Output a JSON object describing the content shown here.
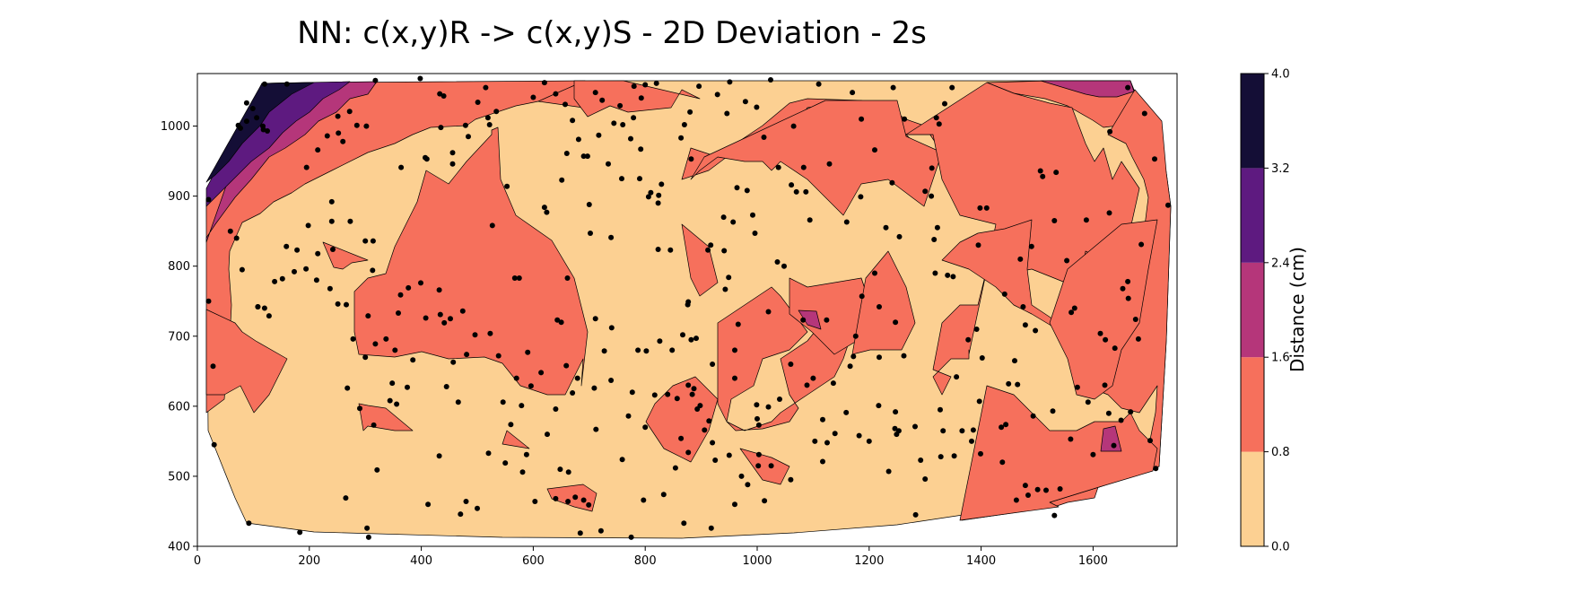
{
  "chart_data": {
    "type": "contour",
    "title": "NN: c(x,y)R -> c(x,y)S - 2D Deviation - 2s",
    "xlim": [
      0,
      1750
    ],
    "ylim": [
      400,
      1075
    ],
    "x_ticks": [
      0,
      200,
      400,
      600,
      800,
      1000,
      1200,
      1400,
      1600
    ],
    "y_ticks": [
      400,
      500,
      600,
      700,
      800,
      900,
      1000
    ],
    "colorbar": {
      "label": "Distance (cm)",
      "levels": [
        0.0,
        0.8,
        1.6,
        2.4,
        3.2,
        4.0
      ],
      "colors": [
        "#fcd092",
        "#f6705c",
        "#b5367a",
        "#5e1a80",
        "#140e36"
      ]
    },
    "sample_points": [
      [
        20,
        895
      ],
      [
        120,
        1060
      ],
      [
        160,
        1060
      ],
      [
        318,
        1065
      ],
      [
        398,
        1068
      ],
      [
        433,
        1046
      ],
      [
        440,
        1043
      ],
      [
        534,
        1021
      ],
      [
        519,
        1012
      ],
      [
        522,
        1002
      ],
      [
        620,
        1062
      ],
      [
        711,
        1048
      ],
      [
        723,
        1037
      ],
      [
        755,
        1029
      ],
      [
        760,
        1002
      ],
      [
        820,
        1061
      ],
      [
        864,
        983
      ],
      [
        882,
        953
      ],
      [
        999,
        1027
      ],
      [
        1024,
        1066
      ],
      [
        1012,
        984
      ],
      [
        1065,
        1000
      ],
      [
        1110,
        1060
      ],
      [
        1170,
        1048
      ],
      [
        1186,
        1010
      ],
      [
        1243,
        1055
      ],
      [
        1263,
        1010
      ],
      [
        1320,
        1012
      ],
      [
        1325,
        1003
      ],
      [
        1335,
        1032
      ],
      [
        1348,
        1055
      ],
      [
        1662,
        1055
      ],
      [
        1692,
        1018
      ],
      [
        1710,
        953
      ],
      [
        1630,
        992
      ],
      [
        1734,
        887
      ],
      [
        1629,
        876
      ],
      [
        1588,
        866
      ],
      [
        1506,
        936
      ],
      [
        1510,
        928
      ],
      [
        1534,
        934
      ],
      [
        1398,
        883
      ],
      [
        1410,
        883
      ],
      [
        1312,
        940
      ],
      [
        1300,
        907
      ],
      [
        1311,
        900
      ],
      [
        1322,
        855
      ],
      [
        1316,
        838
      ],
      [
        1340,
        787
      ],
      [
        1254,
        842
      ],
      [
        1230,
        855
      ],
      [
        1241,
        919
      ],
      [
        1210,
        966
      ],
      [
        1185,
        899
      ],
      [
        1160,
        863
      ],
      [
        1129,
        946
      ],
      [
        1083,
        941
      ],
      [
        1094,
        866
      ],
      [
        1070,
        906
      ],
      [
        1061,
        916
      ],
      [
        1087,
        906
      ],
      [
        1038,
        941
      ],
      [
        982,
        908
      ],
      [
        964,
        912
      ],
      [
        992,
        873
      ],
      [
        940,
        870
      ],
      [
        957,
        863
      ],
      [
        912,
        823
      ],
      [
        882,
        695
      ],
      [
        887,
        625
      ],
      [
        864,
        554
      ],
      [
        893,
        596
      ],
      [
        906,
        566
      ],
      [
        920,
        548
      ],
      [
        925,
        523
      ],
      [
        960,
        460
      ],
      [
        983,
        488
      ],
      [
        1013,
        465
      ],
      [
        1003,
        531
      ],
      [
        1003,
        573
      ],
      [
        999,
        602
      ],
      [
        1025,
        515
      ],
      [
        1060,
        495
      ],
      [
        1117,
        521
      ],
      [
        1125,
        548
      ],
      [
        1082,
        723
      ],
      [
        1172,
        671
      ],
      [
        1187,
        757
      ],
      [
        1218,
        742
      ],
      [
        1246,
        568
      ],
      [
        1253,
        565
      ],
      [
        1249,
        560
      ],
      [
        1283,
        445
      ],
      [
        1292,
        523
      ],
      [
        1328,
        528
      ],
      [
        1356,
        642
      ],
      [
        1366,
        565
      ],
      [
        1383,
        550
      ],
      [
        1399,
        532
      ],
      [
        1392,
        710
      ],
      [
        1460,
        665
      ],
      [
        1475,
        742
      ],
      [
        1479,
        716
      ],
      [
        1479,
        487
      ],
      [
        1484,
        473
      ],
      [
        1501,
        481
      ],
      [
        1493,
        586
      ],
      [
        1531,
        444
      ],
      [
        1553,
        808
      ],
      [
        1567,
        740
      ],
      [
        1572,
        627
      ],
      [
        1613,
        704
      ],
      [
        1622,
        695
      ],
      [
        1621,
        630
      ],
      [
        1628,
        590
      ],
      [
        1650,
        580
      ],
      [
        1637,
        544
      ],
      [
        1639,
        683
      ],
      [
        1653,
        768
      ],
      [
        1662,
        778
      ],
      [
        1663,
        754
      ],
      [
        1676,
        724
      ],
      [
        1681,
        696
      ],
      [
        1686,
        831
      ],
      [
        1712,
        511
      ],
      [
        1600,
        531
      ],
      [
        1463,
        466
      ],
      [
        1438,
        520
      ],
      [
        1516,
        480
      ],
      [
        1561,
        734
      ],
      [
        1497,
        708
      ],
      [
        1531,
        865
      ],
      [
        1490,
        828
      ],
      [
        1470,
        810
      ],
      [
        1395,
        830
      ],
      [
        1442,
        760
      ],
      [
        1350,
        785
      ],
      [
        1318,
        790
      ],
      [
        1210,
        790
      ],
      [
        1247,
        720
      ],
      [
        1176,
        700
      ],
      [
        1124,
        723
      ],
      [
        1100,
        640
      ],
      [
        1060,
        660
      ],
      [
        1040,
        610
      ],
      [
        1020,
        599
      ],
      [
        1000,
        582
      ],
      [
        1020,
        735
      ],
      [
        1048,
        800
      ],
      [
        1036,
        806
      ],
      [
        996,
        847
      ],
      [
        941,
        822
      ],
      [
        949,
        784
      ],
      [
        943,
        767
      ],
      [
        966,
        717
      ],
      [
        960,
        680
      ],
      [
        960,
        640
      ],
      [
        920,
        660
      ],
      [
        898,
        601
      ],
      [
        884,
        617
      ],
      [
        877,
        630
      ],
      [
        891,
        697
      ],
      [
        867,
        702
      ],
      [
        848,
        680
      ],
      [
        857,
        611
      ],
      [
        840,
        617
      ],
      [
        817,
        616
      ],
      [
        826,
        693
      ],
      [
        845,
        823
      ],
      [
        823,
        824
      ],
      [
        797,
        466
      ],
      [
        775,
        413
      ],
      [
        759,
        524
      ],
      [
        721,
        422
      ],
      [
        712,
        567
      ],
      [
        699,
        459
      ],
      [
        690,
        466
      ],
      [
        684,
        419
      ],
      [
        662,
        464
      ],
      [
        675,
        470
      ],
      [
        663,
        506
      ],
      [
        648,
        510
      ],
      [
        640,
        468
      ],
      [
        603,
        464
      ],
      [
        581,
        506
      ],
      [
        588,
        531
      ],
      [
        550,
        519
      ],
      [
        520,
        533
      ],
      [
        500,
        454
      ],
      [
        480,
        464
      ],
      [
        470,
        446
      ],
      [
        412,
        460
      ],
      [
        432,
        529
      ],
      [
        303,
        426
      ],
      [
        306,
        413
      ],
      [
        315,
        573
      ],
      [
        321,
        509
      ],
      [
        344,
        608
      ],
      [
        356,
        603
      ],
      [
        348,
        633
      ],
      [
        385,
        666
      ],
      [
        408,
        726
      ],
      [
        441,
        719
      ],
      [
        434,
        731
      ],
      [
        452,
        725
      ],
      [
        457,
        663
      ],
      [
        481,
        674
      ],
      [
        466,
        606
      ],
      [
        445,
        628
      ],
      [
        375,
        627
      ],
      [
        353,
        680
      ],
      [
        300,
        670
      ],
      [
        313,
        794
      ],
      [
        314,
        836
      ],
      [
        300,
        836
      ],
      [
        273,
        864
      ],
      [
        242,
        824
      ],
      [
        215,
        818
      ],
      [
        178,
        823
      ],
      [
        128,
        729
      ],
      [
        120,
        740
      ],
      [
        108,
        742
      ],
      [
        108,
        742
      ],
      [
        80,
        795
      ],
      [
        70,
        840
      ],
      [
        59,
        850
      ],
      [
        20,
        750
      ],
      [
        28,
        657
      ],
      [
        30,
        545
      ],
      [
        92,
        433
      ],
      [
        183,
        420
      ],
      [
        265,
        469
      ],
      [
        290,
        597
      ],
      [
        268,
        626
      ],
      [
        410,
        953
      ],
      [
        456,
        962
      ],
      [
        553,
        914
      ],
      [
        624,
        877
      ],
      [
        620,
        884
      ],
      [
        697,
        957
      ],
      [
        734,
        946
      ],
      [
        758,
        925
      ],
      [
        790,
        925
      ],
      [
        810,
        905
      ],
      [
        806,
        899
      ],
      [
        739,
        841
      ],
      [
        702,
        847
      ],
      [
        700,
        888
      ],
      [
        690,
        957
      ],
      [
        651,
        923
      ],
      [
        567,
        783
      ],
      [
        527,
        858
      ],
      [
        575,
        783
      ],
      [
        661,
        783
      ],
      [
        650,
        720
      ],
      [
        643,
        723
      ],
      [
        640,
        596
      ],
      [
        625,
        560
      ],
      [
        711,
        725
      ],
      [
        727,
        679
      ],
      [
        740,
        712
      ],
      [
        787,
        680
      ],
      [
        802,
        679
      ],
      [
        823,
        890
      ],
      [
        876,
        745
      ],
      [
        877,
        749
      ],
      [
        829,
        917
      ],
      [
        824,
        901
      ],
      [
        917,
        830
      ],
      [
        869,
        433
      ],
      [
        918,
        426
      ],
      [
        1139,
        561
      ],
      [
        1182,
        558
      ],
      [
        1247,
        592
      ],
      [
        1217,
        601
      ],
      [
        1327,
        595
      ],
      [
        1282,
        571
      ],
      [
        1332,
        565
      ],
      [
        1436,
        570
      ],
      [
        1444,
        574
      ],
      [
        1528,
        593
      ],
      [
        1591,
        606
      ],
      [
        1667,
        592
      ],
      [
        1702,
        551
      ],
      [
        1541,
        482
      ],
      [
        1560,
        553
      ],
      [
        1465,
        631
      ],
      [
        1397,
        607
      ],
      [
        1402,
        669
      ],
      [
        1449,
        632
      ],
      [
        1377,
        695
      ],
      [
        1262,
        672
      ],
      [
        1218,
        670
      ],
      [
        1166,
        657
      ],
      [
        1136,
        633
      ],
      [
        1089,
        630
      ],
      [
        1159,
        591
      ],
      [
        1200,
        550
      ],
      [
        1300,
        496
      ],
      [
        1352,
        529
      ],
      [
        1386,
        566
      ],
      [
        1235,
        507
      ],
      [
        1117,
        581
      ],
      [
        1103,
        550
      ],
      [
        1002,
        515
      ],
      [
        972,
        500
      ],
      [
        950,
        530
      ],
      [
        914,
        579
      ],
      [
        877,
        534
      ],
      [
        833,
        474
      ],
      [
        854,
        512
      ],
      [
        800,
        570
      ],
      [
        770,
        586
      ],
      [
        777,
        620
      ],
      [
        739,
        637
      ],
      [
        709,
        626
      ],
      [
        679,
        640
      ],
      [
        670,
        619
      ],
      [
        659,
        658
      ],
      [
        614,
        648
      ],
      [
        596,
        629
      ],
      [
        579,
        601
      ],
      [
        560,
        574
      ],
      [
        546,
        606
      ],
      [
        570,
        640
      ],
      [
        590,
        677
      ],
      [
        538,
        672
      ],
      [
        523,
        704
      ],
      [
        496,
        702
      ],
      [
        474,
        736
      ],
      [
        432,
        766
      ],
      [
        399,
        776
      ],
      [
        377,
        769
      ],
      [
        363,
        759
      ],
      [
        359,
        733
      ],
      [
        337,
        696
      ],
      [
        318,
        689
      ],
      [
        305,
        729
      ],
      [
        278,
        696
      ],
      [
        266,
        745
      ],
      [
        251,
        746
      ],
      [
        237,
        768
      ],
      [
        213,
        780
      ],
      [
        194,
        796
      ],
      [
        173,
        792
      ],
      [
        152,
        782
      ],
      [
        138,
        778
      ],
      [
        159,
        828
      ],
      [
        198,
        858
      ],
      [
        240,
        864
      ],
      [
        252,
        990
      ],
      [
        215,
        966
      ],
      [
        195,
        941
      ],
      [
        240,
        892
      ],
      [
        117,
        1000
      ],
      [
        118,
        995
      ],
      [
        125,
        993
      ],
      [
        88,
        1007
      ],
      [
        77,
        997
      ],
      [
        88,
        1033
      ],
      [
        73,
        1001
      ],
      [
        99,
        1025
      ],
      [
        106,
        1012
      ],
      [
        251,
        1014
      ],
      [
        232,
        986
      ],
      [
        272,
        1021
      ],
      [
        285,
        1001
      ],
      [
        260,
        978
      ],
      [
        302,
        1000
      ],
      [
        364,
        941
      ],
      [
        407,
        955
      ],
      [
        435,
        998
      ],
      [
        479,
        1001
      ],
      [
        484,
        985
      ],
      [
        456,
        946
      ],
      [
        501,
        1034
      ],
      [
        515,
        1055
      ],
      [
        600,
        1041
      ],
      [
        640,
        1046
      ],
      [
        657,
        1031
      ],
      [
        681,
        981
      ],
      [
        670,
        1008
      ],
      [
        660,
        961
      ],
      [
        717,
        987
      ],
      [
        744,
        1004
      ],
      [
        779,
        1012
      ],
      [
        774,
        982
      ],
      [
        792,
        967
      ],
      [
        793,
        1040
      ],
      [
        780,
        1057
      ],
      [
        800,
        1059
      ],
      [
        870,
        1002
      ],
      [
        880,
        1020
      ],
      [
        896,
        1057
      ],
      [
        929,
        1045
      ],
      [
        946,
        1018
      ],
      [
        979,
        1035
      ],
      [
        951,
        1063
      ]
    ]
  }
}
